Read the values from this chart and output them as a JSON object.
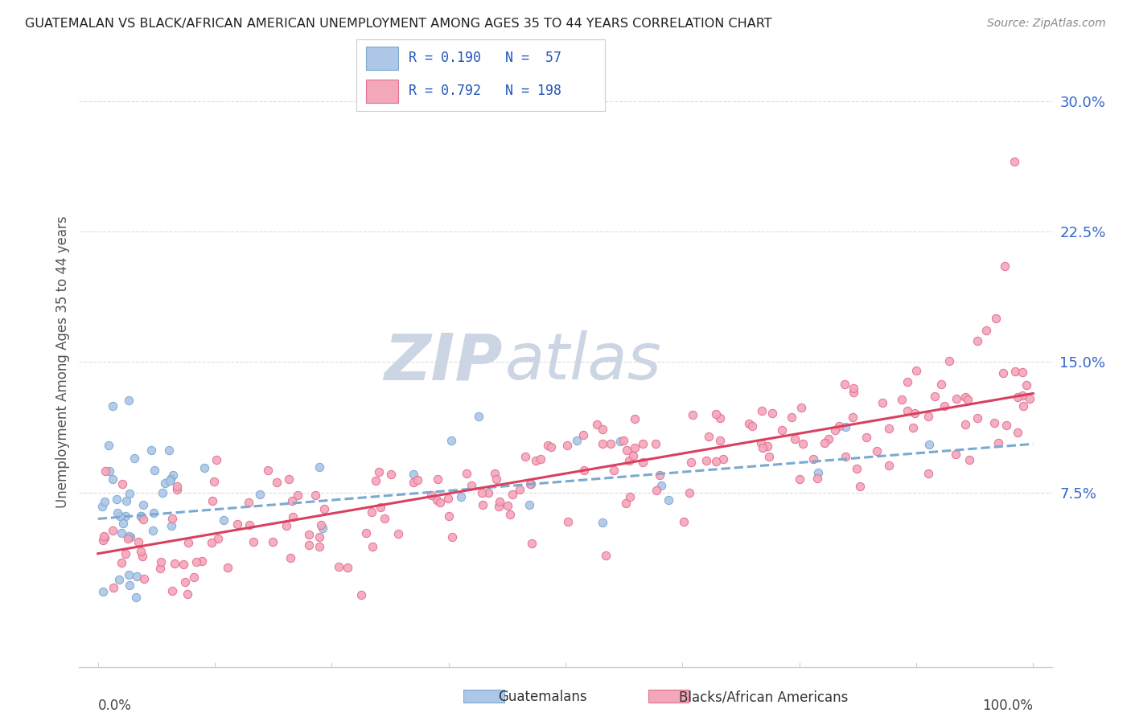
{
  "title": "GUATEMALAN VS BLACK/AFRICAN AMERICAN UNEMPLOYMENT AMONG AGES 35 TO 44 YEARS CORRELATION CHART",
  "source": "Source: ZipAtlas.com",
  "ylabel": "Unemployment Among Ages 35 to 44 years",
  "ytick_vals": [
    0.075,
    0.15,
    0.225,
    0.3
  ],
  "ytick_labels": [
    "7.5%",
    "15.0%",
    "22.5%",
    "30.0%"
  ],
  "legend_line1": "R = 0.190   N =  57",
  "legend_line2": "R = 0.792   N = 198",
  "color_blue_fill": "#aec6e8",
  "color_blue_edge": "#7aaad0",
  "color_blue_line": "#7aaad0",
  "color_pink_fill": "#f4a7b9",
  "color_pink_edge": "#e07090",
  "color_pink_line": "#d94060",
  "color_text_blue": "#2255bb",
  "color_tick_label": "#3366cc",
  "watermark_color": "#ccd5e3",
  "background": "#ffffff",
  "grid_color": "#dddddd",
  "spine_color": "#cccccc",
  "xlim": [
    -2,
    102
  ],
  "ylim": [
    -0.025,
    0.325
  ],
  "blue_line_start": 0.06,
  "blue_line_end": 0.103,
  "pink_line_start": 0.04,
  "pink_line_end": 0.132
}
